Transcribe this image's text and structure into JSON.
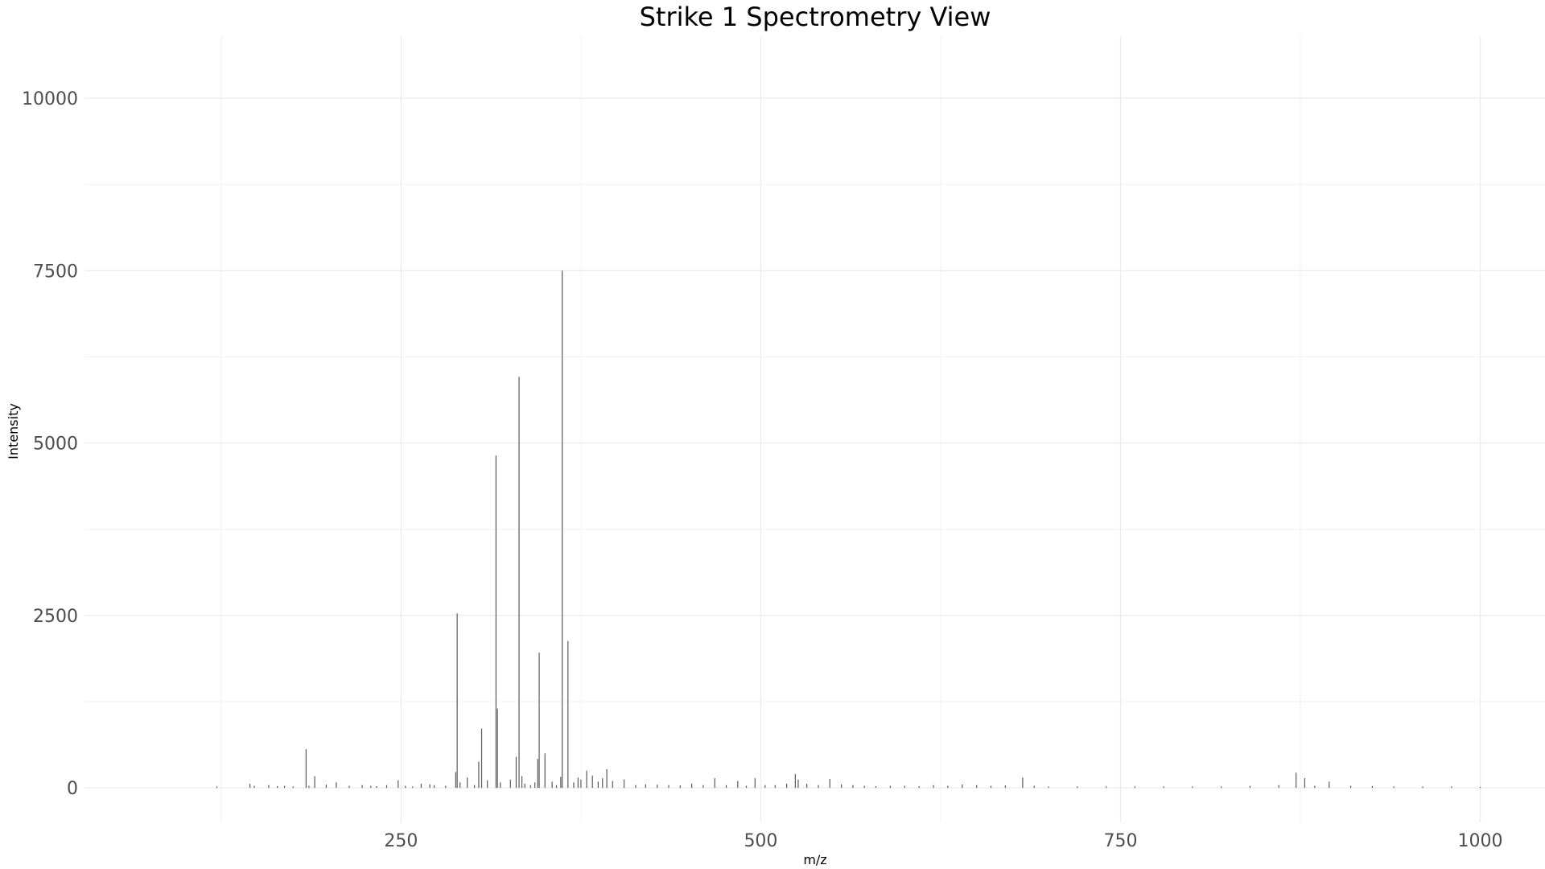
{
  "chart_data": {
    "type": "bar",
    "title": "Strike 1 Spectrometry View",
    "xlabel": "m/z",
    "ylabel": "Intensity",
    "xlim": [
      30,
      1045
    ],
    "ylim": [
      -500,
      10900
    ],
    "x_ticks": [
      250,
      500,
      750,
      1000
    ],
    "y_ticks": [
      0,
      2500,
      5000,
      7500,
      10000
    ],
    "x_tick_labels": [
      "250",
      "500",
      "750",
      "1000"
    ],
    "y_tick_labels": [
      "0",
      "2500",
      "5000",
      "7500",
      "10000"
    ],
    "grid": true,
    "legend": "none",
    "peak_color": "#595959",
    "series": [
      {
        "x": [
          122,
          145,
          148,
          158,
          164,
          169,
          175,
          184,
          186,
          190,
          198,
          205,
          214,
          223,
          229,
          233,
          240,
          248,
          253,
          258,
          264,
          270,
          273,
          281,
          288,
          289,
          291,
          296,
          301,
          304,
          306,
          310,
          316,
          317,
          319,
          326,
          330,
          332,
          334,
          336,
          340,
          343,
          345,
          346,
          350,
          355,
          358,
          361,
          362,
          366,
          370,
          373,
          375,
          379,
          383,
          387,
          390,
          393,
          397,
          405,
          413,
          420,
          428,
          436,
          444,
          452,
          460,
          468,
          476,
          484,
          490,
          496,
          503,
          510,
          518,
          524,
          526,
          532,
          540,
          548,
          556,
          564,
          572,
          580,
          590,
          600,
          610,
          620,
          630,
          640,
          650,
          660,
          670,
          682,
          690,
          700,
          720,
          740,
          760,
          780,
          800,
          820,
          840,
          860,
          872,
          878,
          885,
          895,
          910,
          925,
          940,
          960,
          980,
          1000
        ],
        "values": [
          20,
          60,
          30,
          40,
          25,
          30,
          20,
          560,
          30,
          170,
          45,
          80,
          30,
          40,
          30,
          25,
          40,
          110,
          30,
          20,
          60,
          50,
          40,
          30,
          230,
          2530,
          80,
          150,
          40,
          380,
          860,
          110,
          4820,
          1150,
          80,
          120,
          450,
          5960,
          170,
          60,
          40,
          80,
          420,
          1960,
          500,
          90,
          40,
          160,
          7500,
          2130,
          80,
          150,
          120,
          250,
          180,
          90,
          140,
          270,
          100,
          120,
          40,
          50,
          45,
          40,
          35,
          60,
          40,
          140,
          40,
          100,
          30,
          140,
          40,
          40,
          60,
          200,
          120,
          60,
          40,
          130,
          50,
          40,
          30,
          25,
          30,
          30,
          25,
          40,
          30,
          50,
          40,
          30,
          35,
          150,
          30,
          20,
          20,
          20,
          20,
          20,
          20,
          20,
          30,
          40,
          220,
          140,
          30,
          90,
          30,
          25,
          20,
          20,
          20,
          15
        ]
      }
    ]
  }
}
